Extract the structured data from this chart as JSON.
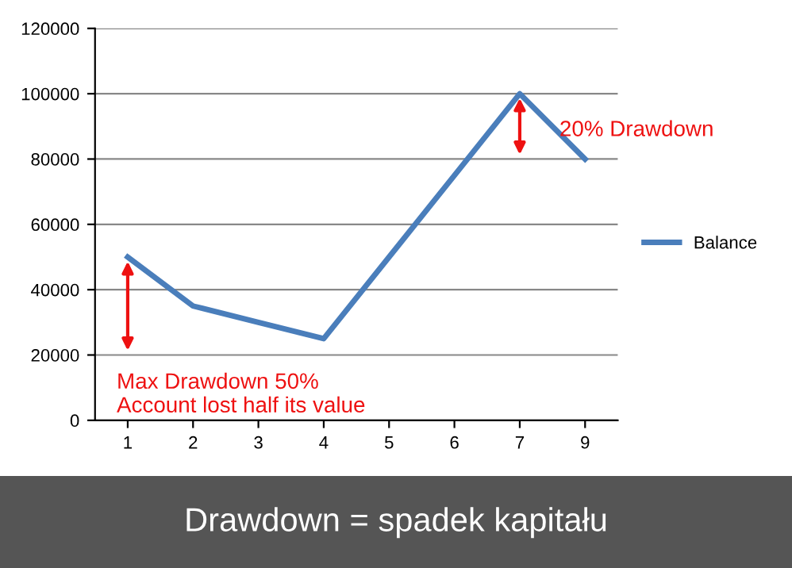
{
  "chart_data": {
    "type": "line",
    "title": "Drawdown = spadek kapitału",
    "categories": [
      "1",
      "2",
      "3",
      "4",
      "5",
      "6",
      "7",
      "9"
    ],
    "series": [
      {
        "name": "Balance",
        "color": "#4a7ebb",
        "values": [
          50000,
          35000,
          30000,
          25000,
          50000,
          75000,
          100000,
          80000
        ]
      }
    ],
    "ylim": [
      0,
      120000
    ],
    "yticks": [
      0,
      20000,
      40000,
      60000,
      80000,
      100000,
      120000
    ],
    "grid": "y",
    "legend": "right",
    "marker": "none",
    "line_style": "solid",
    "annotations": [
      {
        "text": "Max Drawdown 50%\nAccount lost half its value",
        "x": "1",
        "y": 50000
      },
      {
        "text": "20% Drawdown",
        "x": "7",
        "y": 100000
      }
    ]
  }
}
